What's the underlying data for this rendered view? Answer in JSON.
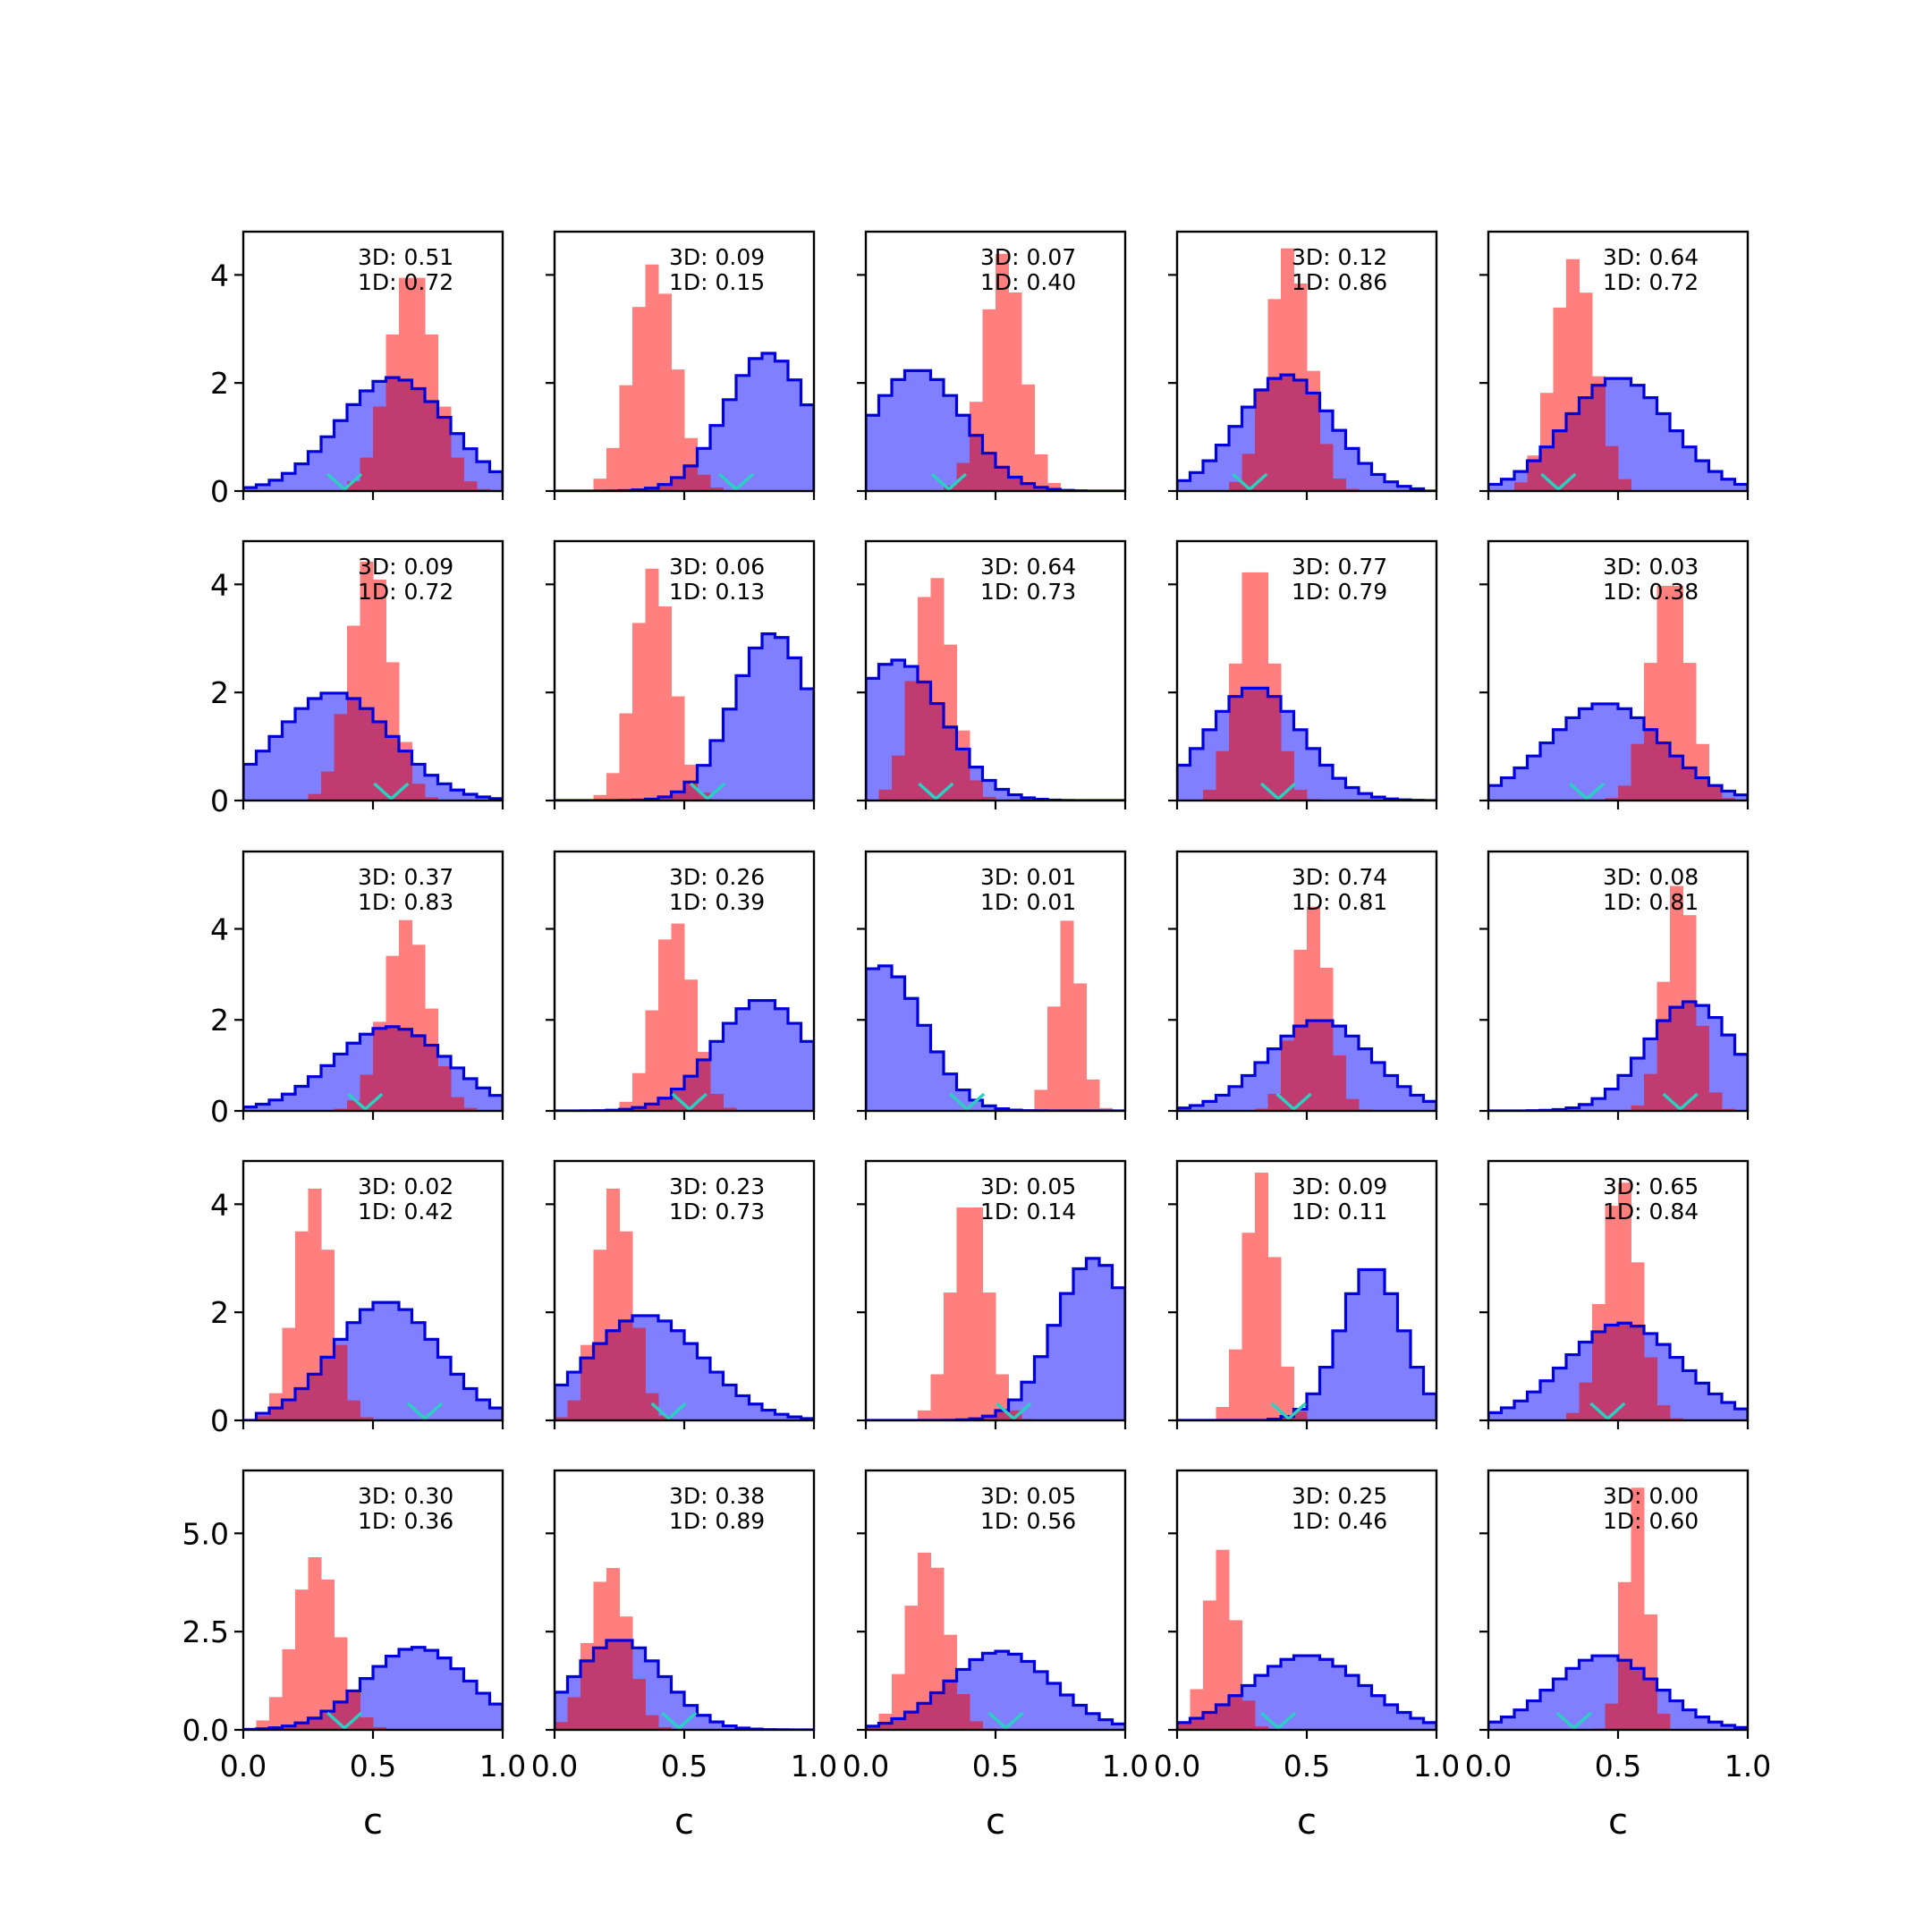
{
  "chart_data": {
    "type": "histogram",
    "grid": false,
    "x_ticks": [
      "0.0",
      "0.5",
      "1.0"
    ],
    "x_label": "c",
    "colors": {
      "red_fill": "#ff7f7f",
      "blue_fill": "#7f7fff",
      "blue_line": "#0000dd",
      "overlap": "#c03c70",
      "overlap_line": "#800080",
      "marker": "#2ad0c0"
    },
    "rows": [
      {
        "ylim": [
          0,
          4.8
        ],
        "y_ticks": [
          {
            "v": 0,
            "t": "0"
          },
          {
            "v": 2,
            "t": "2"
          },
          {
            "v": 4,
            "t": "4"
          }
        ]
      },
      {
        "ylim": [
          0,
          4.8
        ],
        "y_ticks": [
          {
            "v": 0,
            "t": "0"
          },
          {
            "v": 2,
            "t": "2"
          },
          {
            "v": 4,
            "t": "4"
          }
        ]
      },
      {
        "ylim": [
          0,
          5.7
        ],
        "y_ticks": [
          {
            "v": 0,
            "t": "0"
          },
          {
            "v": 2,
            "t": "2"
          },
          {
            "v": 4,
            "t": "4"
          }
        ]
      },
      {
        "ylim": [
          0,
          4.8
        ],
        "y_ticks": [
          {
            "v": 0,
            "t": "0"
          },
          {
            "v": 2,
            "t": "2"
          },
          {
            "v": 4,
            "t": "4"
          }
        ]
      },
      {
        "ylim": [
          0,
          6.6
        ],
        "y_ticks": [
          {
            "v": 0,
            "t": "0.0"
          },
          {
            "v": 2.5,
            "t": "2.5"
          },
          {
            "v": 5,
            "t": "5.0"
          }
        ]
      }
    ],
    "panels": [
      {
        "row": 0,
        "col": 0,
        "label_3d": "3D: 0.51",
        "label_1d": "1D: 0.72",
        "marker_x": 0.39,
        "red": {
          "mean": 0.65,
          "sd": 0.09,
          "peak": 4.1,
          "lo": 0.42,
          "hi": 0.95
        },
        "blue": {
          "mean": 0.58,
          "sd": 0.21,
          "peak": 2.1,
          "lo": 0.0,
          "hi": 1.0
        }
      },
      {
        "row": 0,
        "col": 1,
        "label_3d": "3D: 0.09",
        "label_1d": "1D: 0.15",
        "marker_x": 0.7,
        "red": {
          "mean": 0.38,
          "sd": 0.085,
          "peak": 4.2,
          "lo": 0.14,
          "hi": 0.72
        },
        "blue": {
          "mean": 0.82,
          "sd": 0.16,
          "peak": 2.55,
          "lo": 0.15,
          "hi": 1.0
        }
      },
      {
        "row": 0,
        "col": 2,
        "label_3d": "3D: 0.07",
        "label_1d": "1D: 0.40",
        "marker_x": 0.32,
        "red": {
          "mean": 0.53,
          "sd": 0.075,
          "peak": 4.4,
          "lo": 0.3,
          "hi": 0.9
        },
        "blue": {
          "mean": 0.2,
          "sd": 0.18,
          "peak": 2.25,
          "lo": 0.0,
          "hi": 0.85
        }
      },
      {
        "row": 0,
        "col": 3,
        "label_3d": "3D: 0.12",
        "label_1d": "1D: 0.86",
        "marker_x": 0.28,
        "red": {
          "mean": 0.43,
          "sd": 0.08,
          "peak": 4.5,
          "lo": 0.2,
          "hi": 0.7
        },
        "blue": {
          "mean": 0.42,
          "sd": 0.18,
          "peak": 2.15,
          "lo": 0.0,
          "hi": 0.95
        }
      },
      {
        "row": 0,
        "col": 4,
        "label_3d": "3D: 0.64",
        "label_1d": "1D: 0.72",
        "marker_x": 0.27,
        "red": {
          "mean": 0.33,
          "sd": 0.08,
          "peak": 4.3,
          "lo": 0.08,
          "hi": 0.55
        },
        "blue": {
          "mean": 0.5,
          "sd": 0.2,
          "peak": 2.1,
          "lo": 0.0,
          "hi": 1.0
        }
      },
      {
        "row": 1,
        "col": 0,
        "label_3d": "3D: 0.09",
        "label_1d": "1D: 0.72",
        "marker_x": 0.57,
        "red": {
          "mean": 0.49,
          "sd": 0.08,
          "peak": 4.5,
          "lo": 0.25,
          "hi": 0.8
        },
        "blue": {
          "mean": 0.35,
          "sd": 0.22,
          "peak": 2.0,
          "lo": 0.0,
          "hi": 1.0
        }
      },
      {
        "row": 1,
        "col": 1,
        "label_3d": "3D: 0.06",
        "label_1d": "1D: 0.13",
        "marker_x": 0.59,
        "red": {
          "mean": 0.38,
          "sd": 0.075,
          "peak": 4.3,
          "lo": 0.1,
          "hi": 0.7
        },
        "blue": {
          "mean": 0.84,
          "sd": 0.15,
          "peak": 3.1,
          "lo": 0.15,
          "hi": 1.0
        }
      },
      {
        "row": 1,
        "col": 2,
        "label_3d": "3D: 0.64",
        "label_1d": "1D: 0.73",
        "marker_x": 0.27,
        "red": {
          "mean": 0.26,
          "sd": 0.075,
          "peak": 4.2,
          "lo": 0.05,
          "hi": 0.55
        },
        "blue": {
          "mean": 0.12,
          "sd": 0.18,
          "peak": 2.6,
          "lo": 0.0,
          "hi": 0.9
        }
      },
      {
        "row": 1,
        "col": 3,
        "label_3d": "3D: 0.77",
        "label_1d": "1D: 0.79",
        "marker_x": 0.39,
        "red": {
          "mean": 0.3,
          "sd": 0.07,
          "peak": 4.5,
          "lo": 0.1,
          "hi": 0.6
        },
        "blue": {
          "mean": 0.3,
          "sd": 0.18,
          "peak": 2.1,
          "lo": 0.0,
          "hi": 0.95
        }
      },
      {
        "row": 1,
        "col": 4,
        "label_3d": "3D: 0.03",
        "label_1d": "1D: 0.38",
        "marker_x": 0.38,
        "red": {
          "mean": 0.7,
          "sd": 0.075,
          "peak": 4.2,
          "lo": 0.4,
          "hi": 1.0
        },
        "blue": {
          "mean": 0.45,
          "sd": 0.22,
          "peak": 1.8,
          "lo": 0.0,
          "hi": 1.0
        }
      },
      {
        "row": 2,
        "col": 0,
        "label_3d": "3D: 0.37",
        "label_1d": "1D: 0.83",
        "marker_x": 0.47,
        "red": {
          "mean": 0.63,
          "sd": 0.085,
          "peak": 4.2,
          "lo": 0.35,
          "hi": 0.95
        },
        "blue": {
          "mean": 0.57,
          "sd": 0.22,
          "peak": 1.85,
          "lo": 0.0,
          "hi": 1.0
        }
      },
      {
        "row": 2,
        "col": 1,
        "label_3d": "3D: 0.26",
        "label_1d": "1D: 0.39",
        "marker_x": 0.52,
        "red": {
          "mean": 0.46,
          "sd": 0.075,
          "peak": 4.2,
          "lo": 0.15,
          "hi": 0.8
        },
        "blue": {
          "mean": 0.8,
          "sd": 0.18,
          "peak": 2.45,
          "lo": 0.0,
          "hi": 1.0
        }
      },
      {
        "row": 2,
        "col": 2,
        "label_3d": "3D: 0.01",
        "label_1d": "1D: 0.01",
        "marker_x": 0.39,
        "red": {
          "mean": 0.78,
          "sd": 0.05,
          "peak": 4.2,
          "lo": 0.55,
          "hi": 1.0
        },
        "blue": {
          "mean": 0.06,
          "sd": 0.16,
          "peak": 3.2,
          "lo": 0.0,
          "hi": 0.75
        }
      },
      {
        "row": 2,
        "col": 3,
        "label_3d": "3D: 0.74",
        "label_1d": "1D: 0.81",
        "marker_x": 0.45,
        "red": {
          "mean": 0.52,
          "sd": 0.065,
          "peak": 4.5,
          "lo": 0.25,
          "hi": 0.8
        },
        "blue": {
          "mean": 0.55,
          "sd": 0.2,
          "peak": 2.0,
          "lo": 0.0,
          "hi": 1.0
        }
      },
      {
        "row": 2,
        "col": 4,
        "label_3d": "3D: 0.08",
        "label_1d": "1D: 0.81",
        "marker_x": 0.74,
        "red": {
          "mean": 0.74,
          "sd": 0.06,
          "peak": 5.1,
          "lo": 0.45,
          "hi": 1.0
        },
        "blue": {
          "mean": 0.78,
          "sd": 0.17,
          "peak": 2.4,
          "lo": 0.1,
          "hi": 1.0
        }
      },
      {
        "row": 3,
        "col": 0,
        "label_3d": "3D: 0.02",
        "label_1d": "1D: 0.42",
        "marker_x": 0.7,
        "red": {
          "mean": 0.27,
          "sd": 0.07,
          "peak": 4.3,
          "lo": 0.05,
          "hi": 0.55
        },
        "blue": {
          "mean": 0.55,
          "sd": 0.2,
          "peak": 2.2,
          "lo": 0.05,
          "hi": 1.0
        }
      },
      {
        "row": 3,
        "col": 1,
        "label_3d": "3D: 0.23",
        "label_1d": "1D: 0.73",
        "marker_x": 0.44,
        "red": {
          "mean": 0.23,
          "sd": 0.07,
          "peak": 4.3,
          "lo": 0.0,
          "hi": 0.55
        },
        "blue": {
          "mean": 0.35,
          "sd": 0.22,
          "peak": 1.95,
          "lo": 0.0,
          "hi": 1.0
        }
      },
      {
        "row": 3,
        "col": 2,
        "label_3d": "3D: 0.05",
        "label_1d": "1D: 0.14",
        "marker_x": 0.57,
        "red": {
          "mean": 0.4,
          "sd": 0.07,
          "peak": 4.2,
          "lo": 0.15,
          "hi": 0.7
        },
        "blue": {
          "mean": 0.88,
          "sd": 0.15,
          "peak": 3.0,
          "lo": 0.2,
          "hi": 1.0
        }
      },
      {
        "row": 3,
        "col": 3,
        "label_3d": "3D: 0.09",
        "label_1d": "1D: 0.11",
        "marker_x": 0.43,
        "red": {
          "mean": 0.32,
          "sd": 0.06,
          "peak": 4.6,
          "lo": 0.05,
          "hi": 0.55
        },
        "blue": {
          "mean": 0.75,
          "sd": 0.12,
          "peak": 2.85,
          "lo": 0.35,
          "hi": 1.0
        }
      },
      {
        "row": 3,
        "col": 4,
        "label_3d": "3D: 0.65",
        "label_1d": "1D: 0.84",
        "marker_x": 0.46,
        "red": {
          "mean": 0.51,
          "sd": 0.07,
          "peak": 4.5,
          "lo": 0.25,
          "hi": 0.8
        },
        "blue": {
          "mean": 0.52,
          "sd": 0.22,
          "peak": 1.8,
          "lo": 0.0,
          "hi": 1.0
        }
      },
      {
        "row": 4,
        "col": 0,
        "label_3d": "3D: 0.30",
        "label_1d": "1D: 0.36",
        "marker_x": 0.39,
        "red": {
          "mean": 0.28,
          "sd": 0.085,
          "peak": 4.4,
          "lo": 0.0,
          "hi": 0.6
        },
        "blue": {
          "mean": 0.67,
          "sd": 0.2,
          "peak": 2.1,
          "lo": 0.0,
          "hi": 1.0
        }
      },
      {
        "row": 4,
        "col": 1,
        "label_3d": "3D: 0.38",
        "label_1d": "1D: 0.89",
        "marker_x": 0.48,
        "red": {
          "mean": 0.21,
          "sd": 0.075,
          "peak": 4.2,
          "lo": 0.0,
          "hi": 0.55
        },
        "blue": {
          "mean": 0.25,
          "sd": 0.17,
          "peak": 2.3,
          "lo": 0.0,
          "hi": 0.9
        }
      },
      {
        "row": 4,
        "col": 2,
        "label_3d": "3D: 0.05",
        "label_1d": "1D: 0.56",
        "marker_x": 0.54,
        "red": {
          "mean": 0.24,
          "sd": 0.075,
          "peak": 4.6,
          "lo": 0.0,
          "hi": 0.55
        },
        "blue": {
          "mean": 0.52,
          "sd": 0.2,
          "peak": 2.0,
          "lo": 0.0,
          "hi": 1.0
        }
      },
      {
        "row": 4,
        "col": 3,
        "label_3d": "3D: 0.25",
        "label_1d": "1D: 0.46",
        "marker_x": 0.39,
        "red": {
          "mean": 0.17,
          "sd": 0.055,
          "peak": 4.6,
          "lo": 0.0,
          "hi": 0.45
        },
        "blue": {
          "mean": 0.5,
          "sd": 0.22,
          "peak": 1.9,
          "lo": 0.0,
          "hi": 1.0
        }
      },
      {
        "row": 4,
        "col": 4,
        "label_3d": "3D: 0.00",
        "label_1d": "1D: 0.60",
        "marker_x": 0.33,
        "red": {
          "mean": 0.57,
          "sd": 0.045,
          "peak": 6.2,
          "lo": 0.35,
          "hi": 0.8
        },
        "blue": {
          "mean": 0.45,
          "sd": 0.2,
          "peak": 1.9,
          "lo": 0.0,
          "hi": 1.0
        }
      }
    ]
  }
}
